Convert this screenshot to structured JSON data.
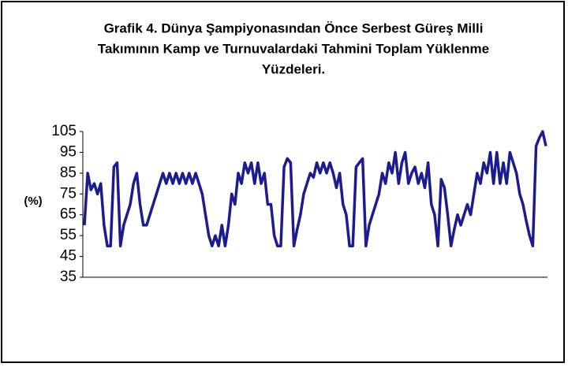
{
  "chart_data": {
    "type": "line",
    "title": [
      "Grafik 4. Dünya Şampiyonasından Önce Serbest Güreş Milli",
      "Takımının Kamp ve Turnuvalardaki Tahmini Toplam Yüklenme",
      "Yüzdeleri."
    ],
    "y_label": "(%)",
    "categories": [
      null,
      null,
      null,
      null,
      null,
      null,
      null,
      null,
      null,
      null,
      null,
      null,
      null,
      null,
      null,
      null,
      null,
      null,
      null,
      null,
      null,
      null,
      null,
      null,
      null,
      null,
      null,
      null,
      null,
      null,
      null,
      null,
      null,
      null,
      null,
      null,
      null,
      null,
      null,
      null,
      null,
      null,
      null,
      null,
      null,
      null,
      null,
      null,
      null,
      null,
      null,
      null,
      null,
      null,
      null,
      null,
      null,
      null,
      null,
      null,
      null,
      null,
      null,
      null,
      null,
      null,
      null,
      null,
      null,
      null,
      null,
      null,
      null,
      null,
      null,
      null,
      null,
      null,
      null,
      null,
      null,
      null,
      null,
      null,
      null,
      null,
      null,
      null,
      null,
      null,
      null,
      null,
      null,
      null,
      null,
      null,
      null,
      null,
      null,
      null,
      null,
      null,
      null,
      null,
      null,
      null,
      null,
      null,
      null,
      null,
      null,
      null,
      null,
      null,
      null,
      null,
      null,
      null,
      null,
      null,
      null,
      null,
      null,
      null,
      null,
      null,
      null,
      null,
      null,
      null,
      null,
      null,
      null,
      null,
      null,
      null,
      null,
      null,
      null,
      null,
      null,
      null
    ],
    "values": [
      60,
      85,
      77,
      80,
      75,
      80,
      60,
      50,
      50,
      88,
      90,
      50,
      60,
      65,
      70,
      80,
      85,
      70,
      60,
      60,
      65,
      70,
      75,
      80,
      85,
      80,
      85,
      80,
      85,
      80,
      85,
      80,
      85,
      80,
      85,
      80,
      75,
      65,
      55,
      50,
      55,
      50,
      60,
      50,
      60,
      75,
      70,
      85,
      80,
      90,
      85,
      90,
      80,
      90,
      80,
      85,
      70,
      70,
      55,
      50,
      50,
      88,
      92,
      90,
      50,
      58,
      65,
      75,
      80,
      85,
      83,
      90,
      85,
      90,
      85,
      90,
      85,
      78,
      85,
      70,
      65,
      50,
      50,
      88,
      90,
      92,
      50,
      60,
      65,
      70,
      75,
      85,
      80,
      90,
      85,
      95,
      80,
      90,
      95,
      80,
      85,
      88,
      80,
      85,
      78,
      90,
      70,
      65,
      50,
      82,
      78,
      65,
      50,
      58,
      65,
      60,
      65,
      70,
      65,
      75,
      85,
      80,
      90,
      85,
      95,
      80,
      95,
      80,
      90,
      80,
      95,
      90,
      85,
      75,
      70,
      62,
      55,
      50,
      98,
      102,
      105,
      98
    ],
    "color": "#1c1c8f",
    "ylim": [
      35,
      105
    ],
    "yticks": [
      35,
      45,
      55,
      65,
      75,
      85,
      95,
      105
    ],
    "grid": false
  }
}
